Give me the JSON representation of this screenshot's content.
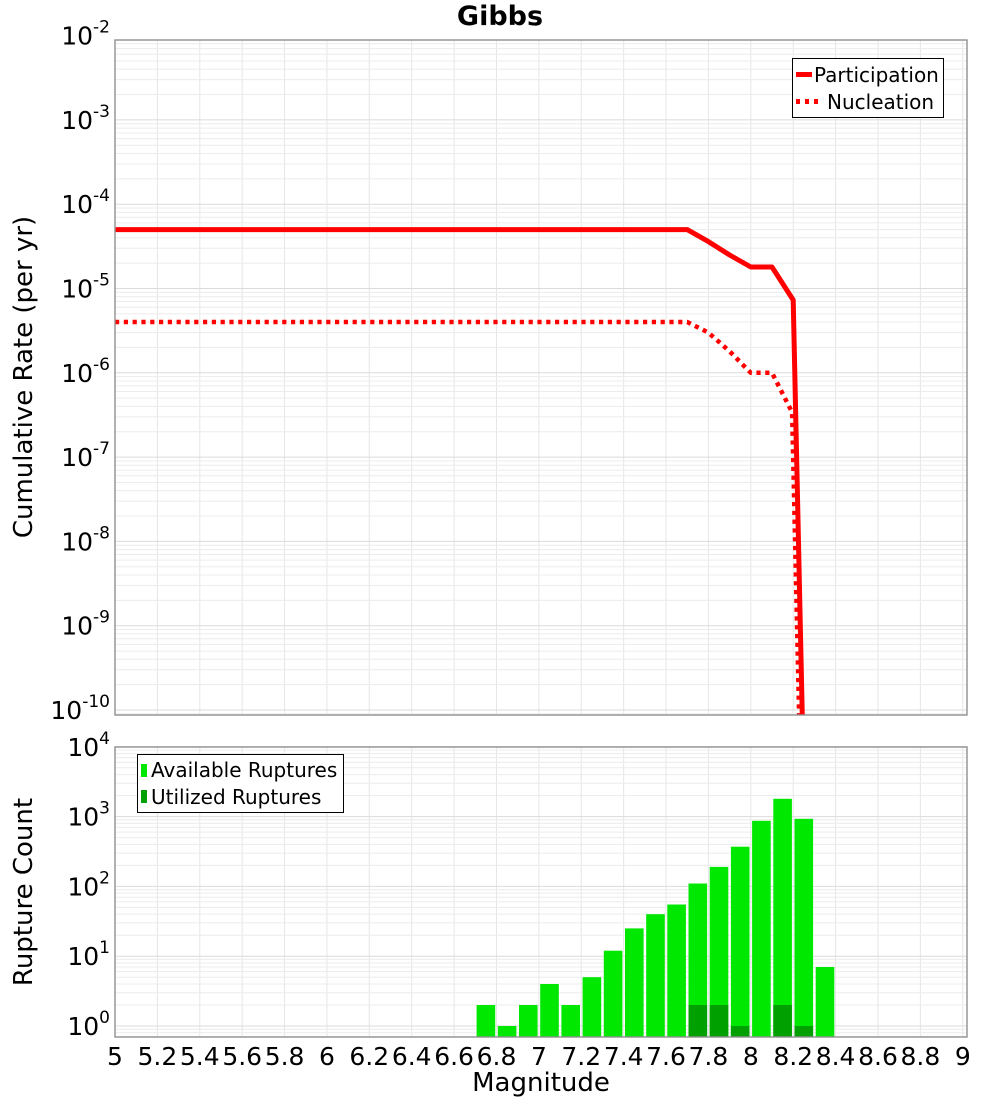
{
  "title": "Gibbs",
  "colors": {
    "line_red": "#ff0000",
    "available_green": "#00e800",
    "utilized_green": "#00a000",
    "grid_minor": "#ececec",
    "grid_major": "#dbdbdb",
    "grid_vertical": "#e6e6e6",
    "plot_border": "#909090",
    "legend_border": "#000000",
    "text": "#000000",
    "background": "#ffffff"
  },
  "chart_data": [
    {
      "type": "line",
      "panel": "top",
      "title": "Gibbs",
      "ylabel": "Cumulative Rate (per yr)",
      "xlabel": "Magnitude",
      "xlim": [
        5,
        9.02
      ],
      "ylim": [
        8.7e-11,
        0.0089
      ],
      "yscale": "log",
      "grid": true,
      "legend_position": "top-right",
      "ytick_base": "10",
      "ytick_exponents": [
        -2,
        -3,
        -4,
        -5,
        -6,
        -7,
        -8,
        -9,
        -10
      ],
      "series": [
        {
          "name": "Participation",
          "style": "solid",
          "color": "#ff0000",
          "points": [
            [
              5.0,
              5e-05
            ],
            [
              7.7,
              5e-05
            ],
            [
              7.8,
              3.6e-05
            ],
            [
              7.9,
              2.5e-05
            ],
            [
              8.0,
              1.8e-05
            ],
            [
              8.1,
              1.8e-05
            ],
            [
              8.2,
              7.3e-06
            ],
            [
              8.245,
              5e-11
            ]
          ]
        },
        {
          "name": "Nucleation",
          "style": "dotted",
          "color": "#ff0000",
          "points": [
            [
              5.0,
              4e-06
            ],
            [
              7.7,
              4e-06
            ],
            [
              7.8,
              3e-06
            ],
            [
              7.9,
              1.8e-06
            ],
            [
              8.0,
              1e-06
            ],
            [
              8.1,
              1e-06
            ],
            [
              8.195,
              3.4e-07
            ],
            [
              8.23,
              5e-11
            ]
          ]
        }
      ]
    },
    {
      "type": "bar",
      "panel": "bottom",
      "ylabel": "Rupture Count",
      "xlabel": "Magnitude",
      "xlim": [
        5,
        9.02
      ],
      "ylim": [
        0.7,
        10500
      ],
      "yscale": "log",
      "grid": true,
      "legend_position": "top-left",
      "ytick_base": "10",
      "ytick_exponents": [
        4,
        3,
        2,
        1,
        0
      ],
      "xticks": [
        5,
        5.2,
        5.4,
        5.6,
        5.8,
        6,
        6.2,
        6.4,
        6.6,
        6.8,
        7,
        7.2,
        7.4,
        7.6,
        7.8,
        8,
        8.2,
        8.4,
        8.6,
        8.8,
        9
      ],
      "xtick_labels": [
        "5",
        "5.2",
        "5.4",
        "5.6",
        "5.8",
        "6",
        "6.2",
        "6.4",
        "6.6",
        "6.8",
        "7",
        "7.2",
        "7.4",
        "7.6",
        "7.8",
        "8",
        "8.2",
        "8.4",
        "8.6",
        "8.8",
        "9"
      ],
      "bin_width": 0.1,
      "categories": [
        6.75,
        6.85,
        6.95,
        7.05,
        7.15,
        7.25,
        7.35,
        7.45,
        7.55,
        7.65,
        7.75,
        7.85,
        7.95,
        8.05,
        8.15,
        8.25,
        8.35
      ],
      "series": [
        {
          "name": "Available Ruptures",
          "color": "#00e800",
          "values": [
            2,
            1,
            2,
            4,
            2,
            5,
            12,
            25,
            40,
            55,
            110,
            190,
            370,
            870,
            1800,
            930,
            7
          ]
        },
        {
          "name": "Utilized Ruptures",
          "color": "#00a000",
          "values": [
            0,
            0,
            0,
            0,
            0,
            0,
            0,
            0,
            0,
            0,
            2,
            2,
            1,
            0,
            2,
            1,
            0
          ]
        }
      ]
    }
  ]
}
